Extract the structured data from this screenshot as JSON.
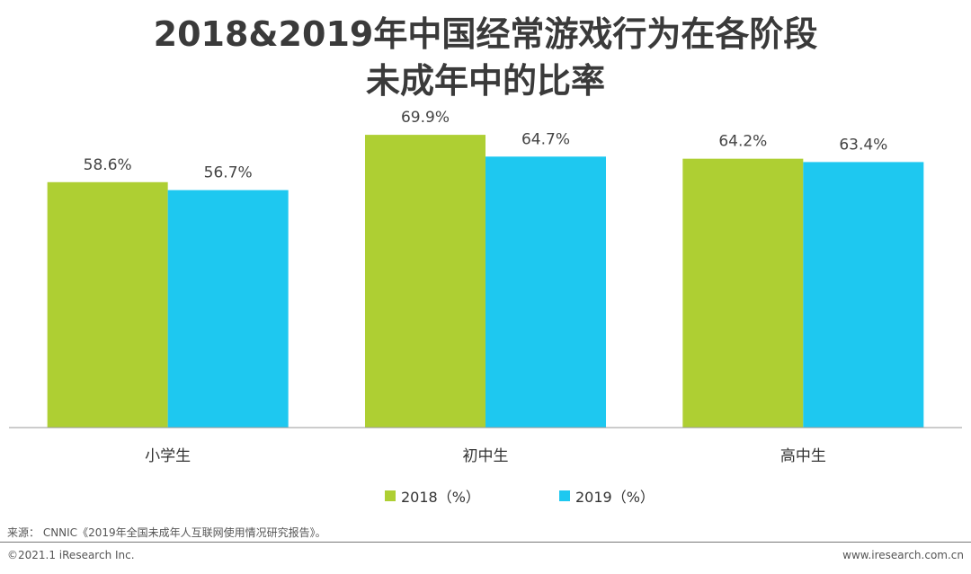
{
  "header": {
    "title_line1": "2018&2019年中国经常游戏行为在各阶段",
    "title_line2": "未成年中的比率"
  },
  "chart_data": {
    "type": "bar",
    "categories": [
      "小学生",
      "初中生",
      "高中生"
    ],
    "series": [
      {
        "name": "2018（%）",
        "values": [
          58.6,
          69.9,
          64.2
        ],
        "labels": [
          "58.6%",
          "69.9%",
          "64.2%"
        ],
        "color": "#aecf33"
      },
      {
        "name": "2019（%）",
        "values": [
          56.7,
          64.7,
          63.4
        ],
        "labels": [
          "56.7%",
          "64.7%",
          "63.4%"
        ],
        "color": "#1ec8f0"
      }
    ],
    "ylim": [
      0,
      80
    ],
    "grid": false,
    "legend_position": "bottom"
  },
  "footer": {
    "source": "来源： CNNIC《2019年全国未成年人互联网使用情况研究报告》。",
    "copyright": "©2021.1 iResearch Inc.",
    "website": "www.iresearch.com.cn"
  }
}
